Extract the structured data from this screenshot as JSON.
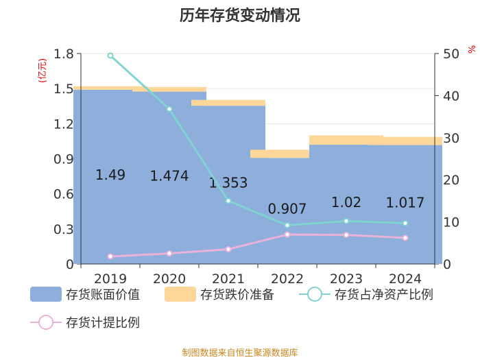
{
  "chart_data": {
    "type": "bar",
    "title": "历年存货变动情况",
    "categories": [
      "2019",
      "2020",
      "2021",
      "2022",
      "2023",
      "2024"
    ],
    "series": [
      {
        "name": "存货账面价值",
        "kind": "bar",
        "axis": "left",
        "values": [
          1.49,
          1.474,
          1.353,
          0.907,
          1.02,
          1.017
        ],
        "color": "#8eaedb"
      },
      {
        "name": "存货跌价准备",
        "kind": "bar-stacked",
        "axis": "left",
        "values": [
          0.03,
          0.04,
          0.05,
          0.07,
          0.08,
          0.07
        ],
        "color": "#fcd799"
      },
      {
        "name": "存货占净资产比例",
        "kind": "line",
        "axis": "right",
        "values": [
          49.5,
          36.8,
          15.0,
          9.2,
          10.2,
          9.7
        ],
        "color": "#7fd3d0"
      },
      {
        "name": "存货计提比例",
        "kind": "line",
        "axis": "right",
        "values": [
          1.8,
          2.5,
          3.5,
          7.0,
          6.9,
          6.2
        ],
        "color": "#e9b3d9"
      }
    ],
    "data_labels": [
      "1.49",
      "1.474",
      "1.353",
      "0.907",
      "1.02",
      "1.017"
    ],
    "y_left": {
      "label": "(亿元)",
      "ylim": [
        0,
        1.8
      ],
      "ticks": [
        "0",
        "0.3",
        "0.6",
        "0.9",
        "1.2",
        "1.5",
        "1.8"
      ]
    },
    "y_right": {
      "label": "%",
      "ylim": [
        0,
        50
      ],
      "ticks": [
        "0",
        "10",
        "20",
        "30",
        "40",
        "50"
      ]
    },
    "grid": true,
    "legend_position": "bottom"
  },
  "source": "制图数据来自恒生聚源数据库"
}
